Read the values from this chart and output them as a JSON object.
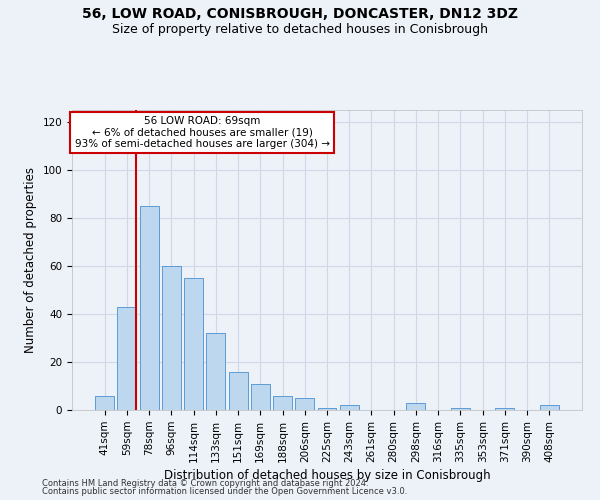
{
  "title_line1": "56, LOW ROAD, CONISBROUGH, DONCASTER, DN12 3DZ",
  "title_line2": "Size of property relative to detached houses in Conisbrough",
  "xlabel": "Distribution of detached houses by size in Conisbrough",
  "ylabel": "Number of detached properties",
  "categories": [
    "41sqm",
    "59sqm",
    "78sqm",
    "96sqm",
    "114sqm",
    "133sqm",
    "151sqm",
    "169sqm",
    "188sqm",
    "206sqm",
    "225sqm",
    "243sqm",
    "261sqm",
    "280sqm",
    "298sqm",
    "316sqm",
    "335sqm",
    "353sqm",
    "371sqm",
    "390sqm",
    "408sqm"
  ],
  "values": [
    6,
    43,
    85,
    60,
    55,
    32,
    16,
    11,
    6,
    5,
    1,
    2,
    0,
    0,
    3,
    0,
    1,
    0,
    1,
    0,
    2
  ],
  "bar_color": "#bdd7ee",
  "bar_edge_color": "#5b9bd5",
  "grid_color": "#d0d8e8",
  "ylim": [
    0,
    125
  ],
  "yticks": [
    0,
    20,
    40,
    60,
    80,
    100,
    120
  ],
  "vline_bin_index": 1,
  "annotation_text_line1": "56 LOW ROAD: 69sqm",
  "annotation_text_line2": "← 6% of detached houses are smaller (19)",
  "annotation_text_line3": "93% of semi-detached houses are larger (304) →",
  "annotation_box_color": "#ffffff",
  "annotation_box_edge_color": "#cc0000",
  "vline_color": "#cc0000",
  "footer_line1": "Contains HM Land Registry data © Crown copyright and database right 2024.",
  "footer_line2": "Contains public sector information licensed under the Open Government Licence v3.0.",
  "bg_color": "#edf2f9",
  "title_fontsize": 10,
  "subtitle_fontsize": 9,
  "axis_label_fontsize": 8.5,
  "tick_fontsize": 7.5,
  "annotation_fontsize": 7.5,
  "footer_fontsize": 6
}
